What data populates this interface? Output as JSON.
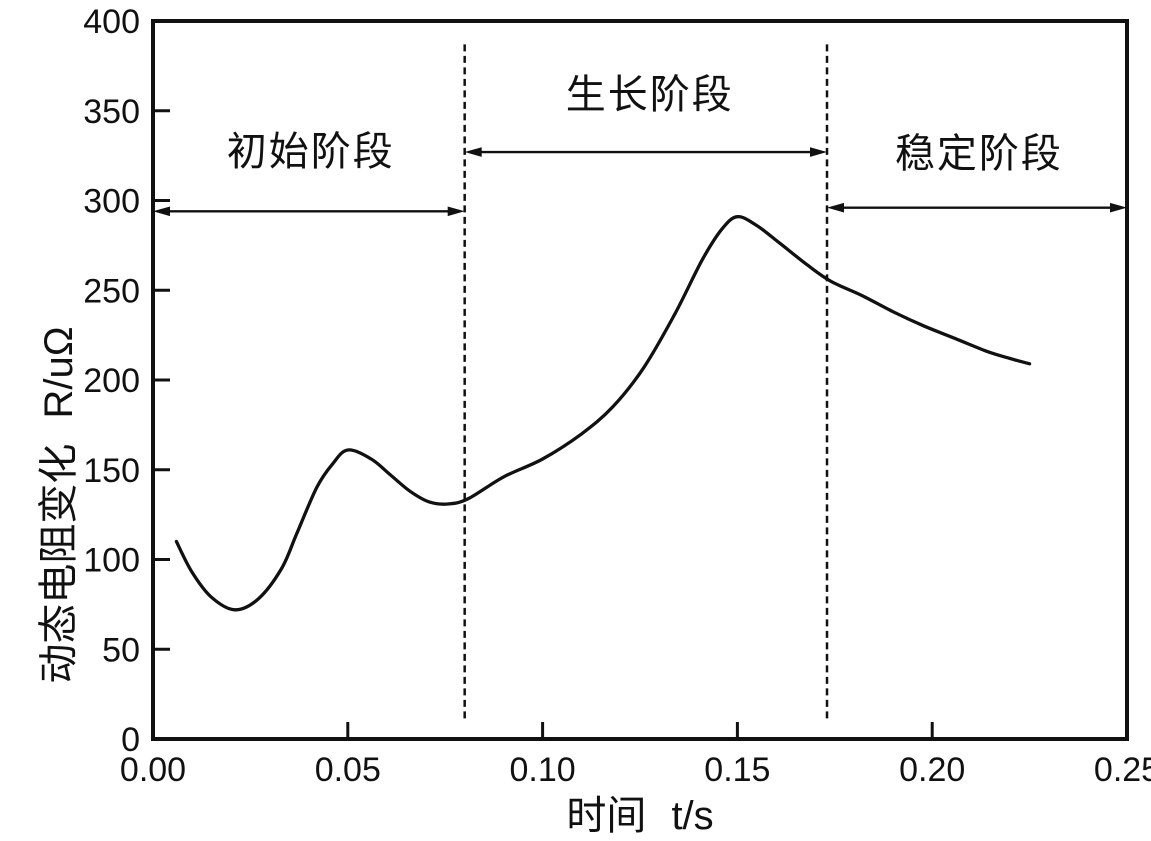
{
  "figure": {
    "background": "#ffffff",
    "line_color": "#111111"
  },
  "chart_data": {
    "type": "line",
    "title": "",
    "xlabel": "时间  t/s",
    "ylabel": "动态电阻变化  R/uΩ",
    "xlim": [
      0,
      0.25
    ],
    "ylim": [
      0,
      400
    ],
    "grid": false,
    "legend": null,
    "x_ticks": [
      {
        "value": 0.0,
        "label": "0.00"
      },
      {
        "value": 0.05,
        "label": "0.05"
      },
      {
        "value": 0.1,
        "label": "0.10"
      },
      {
        "value": 0.15,
        "label": "0.15"
      },
      {
        "value": 0.2,
        "label": "0.20"
      },
      {
        "value": 0.25,
        "label": "0.25"
      }
    ],
    "y_ticks": [
      {
        "value": 0,
        "label": "0"
      },
      {
        "value": 50,
        "label": "50"
      },
      {
        "value": 100,
        "label": "100"
      },
      {
        "value": 150,
        "label": "150"
      },
      {
        "value": 200,
        "label": "200"
      },
      {
        "value": 250,
        "label": "250"
      },
      {
        "value": 300,
        "label": "300"
      },
      {
        "value": 350,
        "label": "350"
      },
      {
        "value": 400,
        "label": "400"
      }
    ],
    "series": [
      {
        "color": "#111111",
        "points": [
          [
            0.006,
            110
          ],
          [
            0.01,
            93
          ],
          [
            0.015,
            79
          ],
          [
            0.021,
            72
          ],
          [
            0.027,
            78
          ],
          [
            0.033,
            95
          ],
          [
            0.037,
            115
          ],
          [
            0.042,
            140
          ],
          [
            0.046,
            153
          ],
          [
            0.05,
            161
          ],
          [
            0.056,
            156
          ],
          [
            0.061,
            147
          ],
          [
            0.066,
            138
          ],
          [
            0.071,
            132
          ],
          [
            0.076,
            131
          ],
          [
            0.081,
            134
          ],
          [
            0.09,
            146
          ],
          [
            0.1,
            156
          ],
          [
            0.11,
            170
          ],
          [
            0.118,
            185
          ],
          [
            0.126,
            207
          ],
          [
            0.134,
            237
          ],
          [
            0.141,
            267
          ],
          [
            0.146,
            284
          ],
          [
            0.15,
            291
          ],
          [
            0.155,
            286
          ],
          [
            0.161,
            276
          ],
          [
            0.168,
            264
          ],
          [
            0.174,
            255
          ],
          [
            0.182,
            247
          ],
          [
            0.19,
            238
          ],
          [
            0.198,
            230
          ],
          [
            0.206,
            223
          ],
          [
            0.214,
            216
          ],
          [
            0.22,
            212
          ],
          [
            0.225,
            209
          ]
        ]
      }
    ],
    "stage_dividers": {
      "t_values": [
        0.08,
        0.173
      ],
      "R_extent": [
        9,
        387
      ],
      "style": "dashed"
    },
    "stages": [
      {
        "label": "初始阶段",
        "t_start": 0.0,
        "t_end": 0.08,
        "arrow_R": 294,
        "label_t": 0.0405,
        "label_R": 329
      },
      {
        "label": "生长阶段",
        "t_start": 0.08,
        "t_end": 0.173,
        "arrow_R": 327,
        "label_t": 0.1275,
        "label_R": 361
      },
      {
        "label": "稳定阶段",
        "t_start": 0.173,
        "t_end": 0.25,
        "arrow_R": 296,
        "label_t": 0.212,
        "label_R": 328
      }
    ]
  }
}
